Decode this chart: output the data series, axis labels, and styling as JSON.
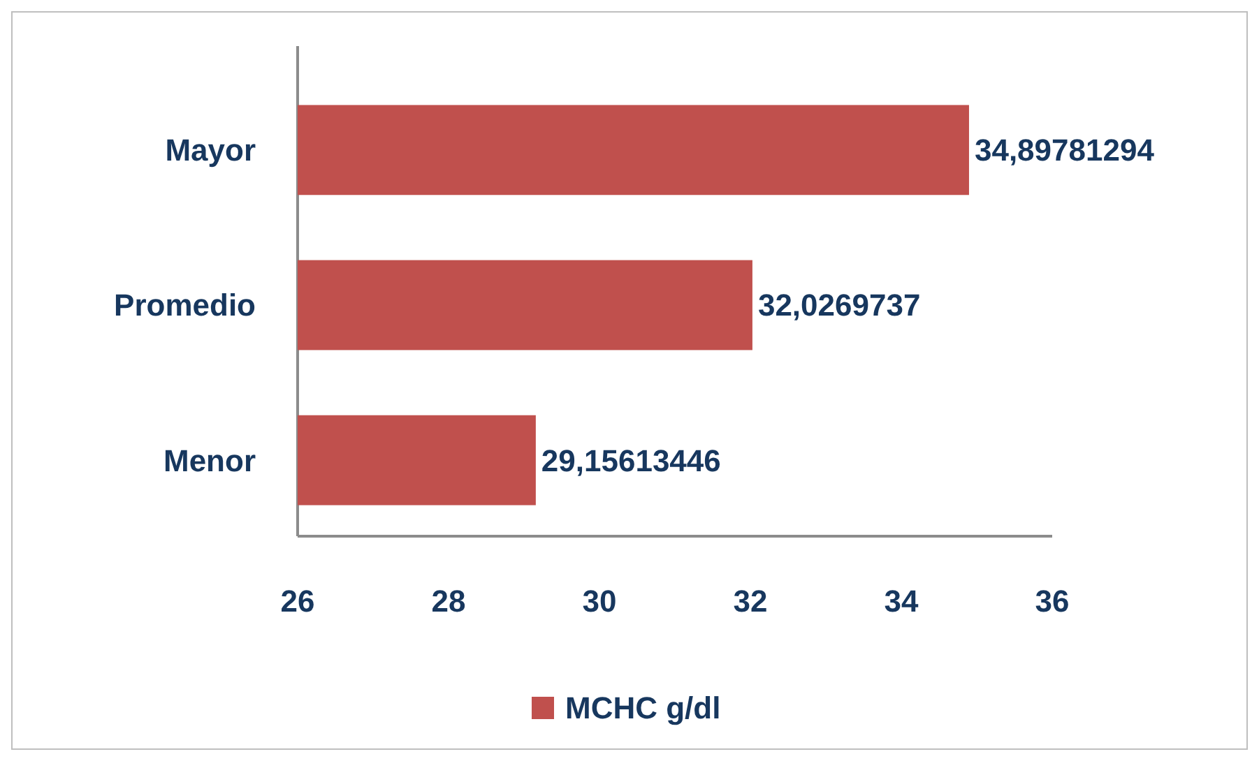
{
  "chart_data": {
    "type": "bar",
    "orientation": "horizontal",
    "categories": [
      "Mayor",
      "Promedio",
      "Menor"
    ],
    "series": [
      {
        "name": "MCHC g/dl",
        "color": "#c0504d",
        "values": [
          34.89781294,
          32.0269737,
          29.15613446
        ],
        "value_labels": [
          "34,89781294",
          "32,0269737",
          "29,15613446"
        ]
      }
    ],
    "xlim": [
      26,
      36
    ],
    "xticks": [
      26,
      28,
      30,
      32,
      34,
      36
    ],
    "legend": "bottom"
  }
}
